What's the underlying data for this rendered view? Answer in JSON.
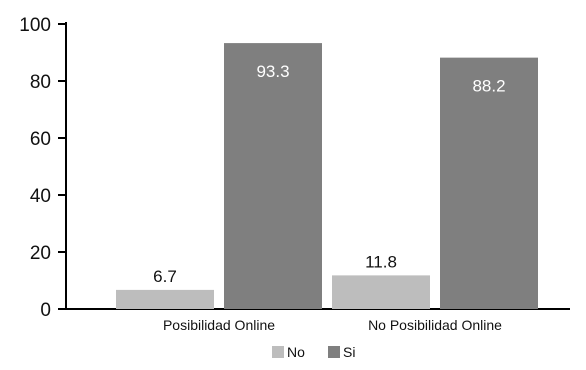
{
  "chart_data": {
    "type": "bar",
    "categories": [
      "Posibilidad Online",
      "No Posibilidad Online"
    ],
    "series": [
      {
        "name": "No",
        "values": [
          6.7,
          11.8
        ],
        "color": "#bdbdbd"
      },
      {
        "name": "Si",
        "values": [
          93.3,
          88.2
        ],
        "color": "#7f7f7f"
      }
    ],
    "value_labels": [
      [
        "6.7",
        "11.8"
      ],
      [
        "93.3",
        "88.2"
      ]
    ],
    "label_colors": {
      "No": "#111111",
      "Si": "#ffffff"
    },
    "ylim": [
      0,
      100
    ],
    "yticks": [
      0,
      20,
      40,
      60,
      80,
      100
    ],
    "ytick_labels": [
      "0",
      "20",
      "40",
      "60",
      "80",
      "100"
    ],
    "grid": false,
    "legend_position": "bottom-center",
    "title": "",
    "xlabel": "",
    "ylabel": ""
  }
}
